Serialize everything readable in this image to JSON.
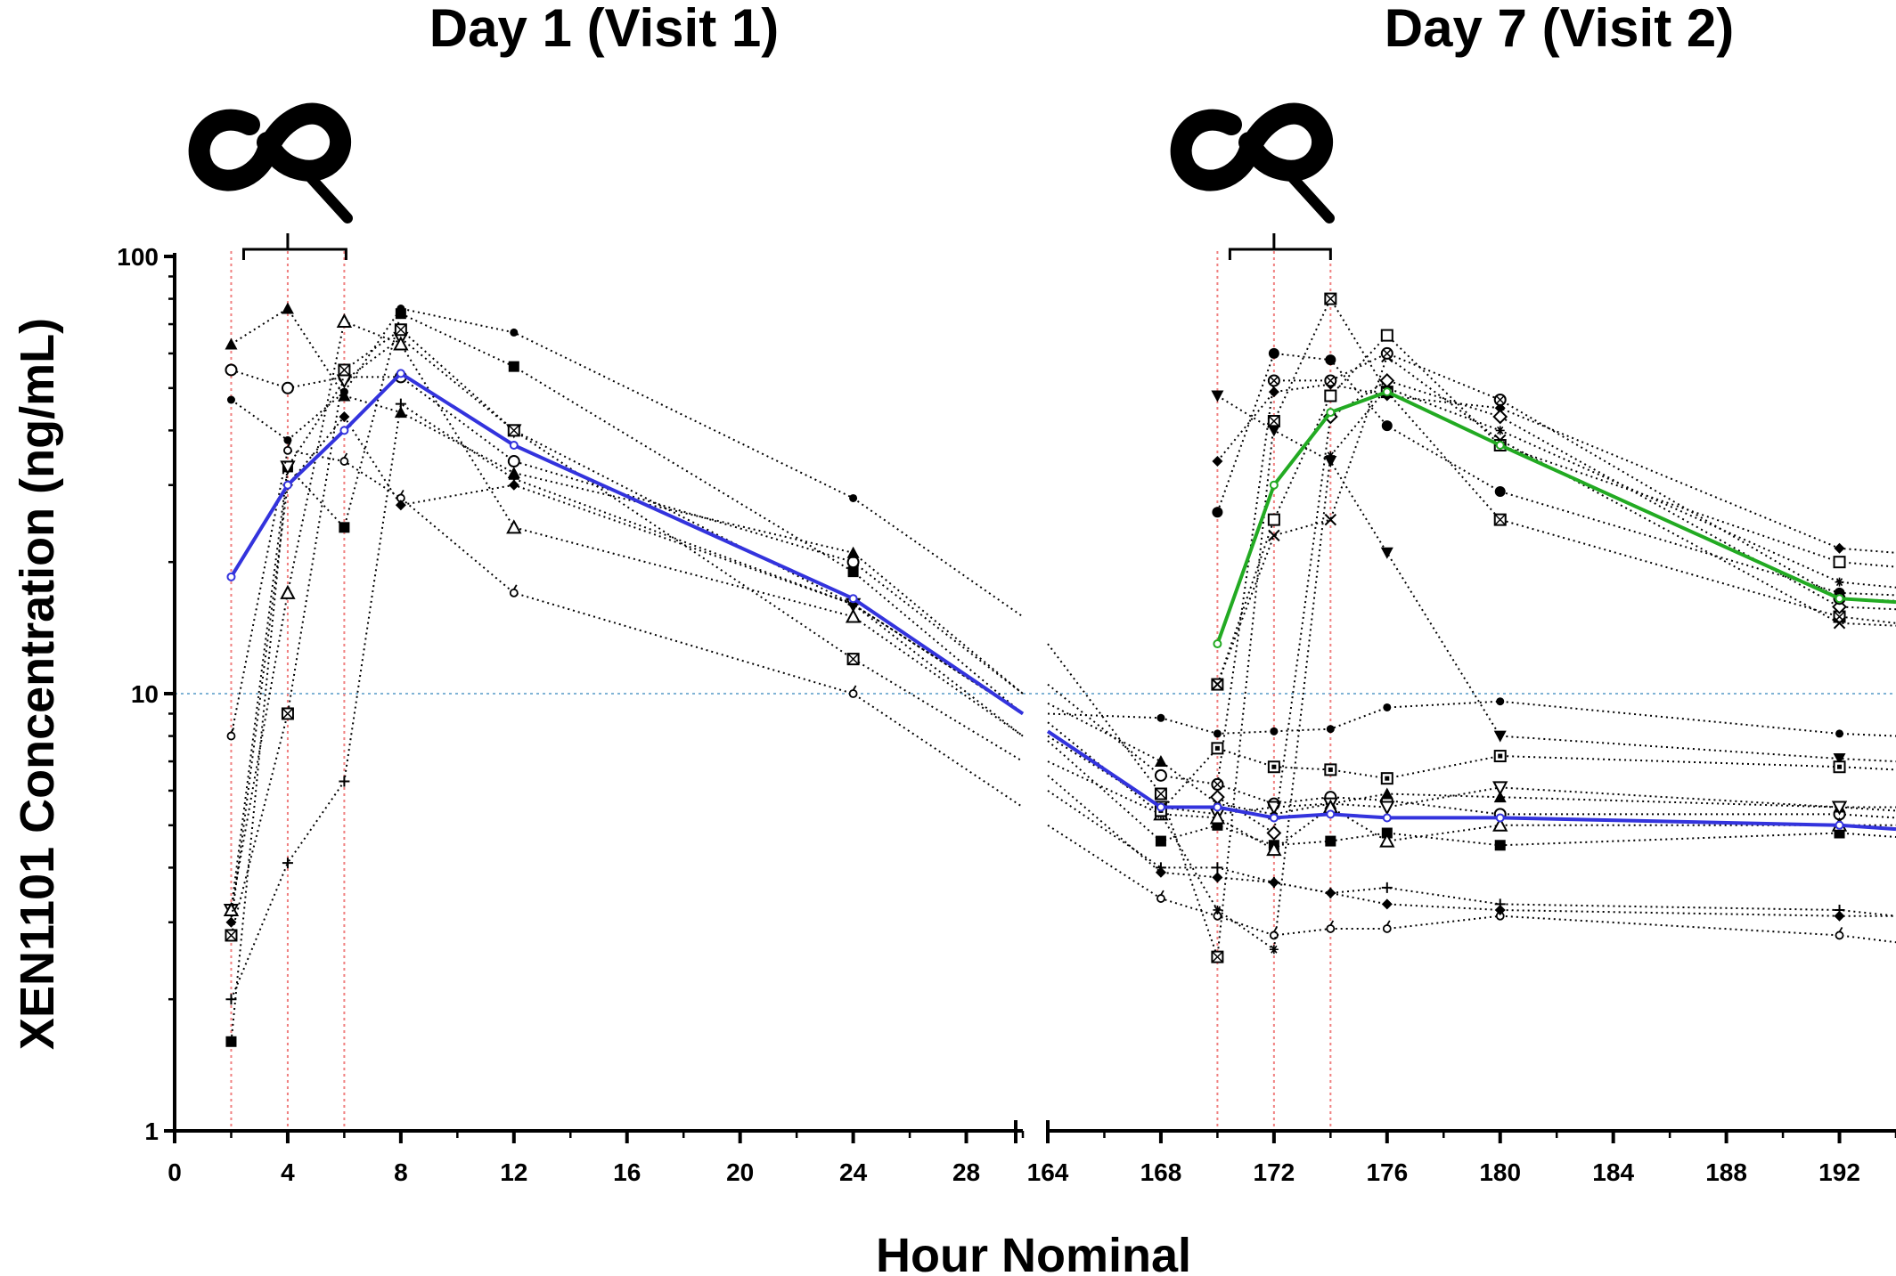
{
  "chart_data": {
    "type": "line",
    "yscale": "log",
    "ylim": [
      1,
      100
    ],
    "ylabel": "XEN1101 Concentration (ng/mL)",
    "xlabel": "Hour Nominal",
    "grid": false,
    "panels": [
      {
        "title": "Day 1 (Visit 1)",
        "xlim": [
          0,
          30
        ],
        "xticks": [
          "0",
          "4",
          "8",
          "12",
          "16",
          "20",
          "24",
          "28"
        ],
        "dose_times": [
          2,
          4,
          6
        ],
        "dosing_icon": "meal-icon"
      },
      {
        "title": "Day 7 (Visit 2)",
        "xlim": [
          164,
          194
        ],
        "xticks": [
          "164",
          "168",
          "172",
          "176",
          "180",
          "184",
          "188",
          "192"
        ],
        "dose_times": [
          170,
          172,
          174
        ],
        "dosing_icon": "meal-icon"
      }
    ],
    "yticks": [
      "1",
      "10",
      "100"
    ],
    "reference_line": {
      "y": 10,
      "color": "#7fb3d5"
    },
    "dose_line_color": "#f08080",
    "subject_color": "#000000",
    "mean_color_primary": "#3333dd",
    "mean_color_green": "#22aa22",
    "mean_series": [
      {
        "color": "#3333dd",
        "points": [
          [
            2,
            18.5
          ],
          [
            4,
            30
          ],
          [
            6,
            40
          ],
          [
            8,
            54
          ],
          [
            12,
            37
          ],
          [
            24,
            16.5
          ],
          [
            30,
            9
          ],
          [
            164,
            8.2
          ],
          [
            168,
            5.5
          ],
          [
            170,
            5.5
          ],
          [
            172,
            5.2
          ],
          [
            174,
            5.3
          ],
          [
            176,
            5.2
          ],
          [
            180,
            5.2
          ],
          [
            192,
            5.0
          ],
          [
            194,
            4.9
          ]
        ]
      },
      {
        "color": "#22aa22",
        "points": [
          [
            170,
            13
          ],
          [
            172,
            30
          ],
          [
            174,
            44
          ],
          [
            176,
            49
          ],
          [
            180,
            37
          ],
          [
            192,
            16.5
          ],
          [
            194,
            16.2
          ]
        ]
      }
    ],
    "subject_series": [
      {
        "marker": "square-filled",
        "points": [
          [
            2,
            1.6
          ],
          [
            4,
            33
          ],
          [
            6,
            24
          ],
          [
            8,
            74
          ],
          [
            12,
            56
          ],
          [
            24,
            19
          ],
          [
            30,
            9
          ],
          [
            164,
            7.8
          ],
          [
            168,
            4.6
          ],
          [
            170,
            5.0
          ],
          [
            172,
            4.5
          ],
          [
            174,
            4.6
          ],
          [
            176,
            4.8
          ],
          [
            180,
            4.5
          ],
          [
            192,
            4.8
          ],
          [
            194,
            4.7
          ]
        ]
      },
      {
        "marker": "circle-open",
        "points": [
          [
            2,
            55
          ],
          [
            4,
            50
          ],
          [
            6,
            53
          ],
          [
            8,
            53
          ],
          [
            12,
            34
          ],
          [
            24,
            20
          ],
          [
            30,
            10
          ],
          [
            164,
            10.5
          ],
          [
            168,
            6.5
          ],
          [
            170,
            6.2
          ],
          [
            172,
            5.6
          ],
          [
            174,
            5.8
          ],
          [
            176,
            5.7
          ],
          [
            180,
            5.3
          ],
          [
            192,
            5.3
          ],
          [
            194,
            5.2
          ]
        ]
      },
      {
        "marker": "triangle-filled",
        "points": [
          [
            2,
            63
          ],
          [
            4,
            76
          ],
          [
            6,
            48
          ],
          [
            8,
            44
          ],
          [
            12,
            32
          ],
          [
            24,
            21
          ],
          [
            30,
            10
          ],
          [
            164,
            9.5
          ],
          [
            168,
            7.0
          ],
          [
            170,
            5.6
          ],
          [
            172,
            5.3
          ],
          [
            174,
            5.6
          ],
          [
            176,
            5.9
          ],
          [
            180,
            5.8
          ],
          [
            192,
            5.5
          ],
          [
            194,
            5.4
          ]
        ]
      },
      {
        "marker": "circle-filled-small",
        "points": [
          [
            2,
            47
          ],
          [
            4,
            38
          ],
          [
            6,
            49
          ],
          [
            8,
            76
          ],
          [
            12,
            67
          ],
          [
            24,
            28
          ],
          [
            30,
            15
          ],
          [
            164,
            9
          ],
          [
            168,
            8.8
          ],
          [
            170,
            8.1
          ],
          [
            172,
            8.2
          ],
          [
            174,
            8.3
          ],
          [
            176,
            9.3
          ],
          [
            180,
            9.6
          ],
          [
            192,
            8.1
          ],
          [
            194,
            8.0
          ]
        ]
      },
      {
        "marker": "triangle-down-open",
        "points": [
          [
            2,
            3.2
          ],
          [
            4,
            33
          ],
          [
            6,
            52
          ],
          [
            8,
            65
          ],
          [
            12,
            40
          ],
          [
            24,
            16
          ],
          [
            30,
            9
          ],
          [
            164,
            8
          ],
          [
            168,
            5.5
          ],
          [
            170,
            5.3
          ],
          [
            172,
            5.5
          ],
          [
            174,
            5.6
          ],
          [
            176,
            5.5
          ],
          [
            180,
            6.1
          ],
          [
            192,
            5.5
          ],
          [
            194,
            5.5
          ]
        ]
      },
      {
        "marker": "square-x",
        "points": [
          [
            2,
            2.8
          ],
          [
            4,
            9
          ],
          [
            6,
            55
          ],
          [
            8,
            68
          ],
          [
            12,
            40
          ],
          [
            24,
            12
          ],
          [
            30,
            7
          ],
          [
            164,
            13
          ],
          [
            168,
            5.9
          ],
          [
            170,
            2.5
          ],
          [
            172,
            42
          ],
          [
            174,
            80
          ],
          [
            176,
            49
          ],
          [
            180,
            25
          ],
          [
            192,
            15
          ],
          [
            194,
            14.5
          ]
        ]
      },
      {
        "marker": "plus",
        "points": [
          [
            2,
            2.0
          ],
          [
            4,
            4.1
          ],
          [
            6,
            6.3
          ],
          [
            8,
            46
          ],
          [
            12,
            31
          ],
          [
            24,
            16
          ],
          [
            30,
            8
          ],
          [
            164,
            6
          ],
          [
            168,
            4.0
          ],
          [
            170,
            4.0
          ],
          [
            172,
            3.7
          ],
          [
            174,
            3.5
          ],
          [
            176,
            3.6
          ],
          [
            180,
            3.3
          ],
          [
            192,
            3.2
          ],
          [
            194,
            3.1
          ]
        ]
      },
      {
        "marker": "diamond-small-open",
        "points": [
          [
            2,
            8
          ],
          [
            4,
            36
          ],
          [
            6,
            34
          ],
          [
            8,
            28
          ],
          [
            12,
            17
          ],
          [
            24,
            10
          ],
          [
            30,
            5.5
          ],
          [
            164,
            5
          ],
          [
            168,
            3.4
          ],
          [
            170,
            3.1
          ],
          [
            172,
            2.8
          ],
          [
            174,
            2.9
          ],
          [
            176,
            2.9
          ],
          [
            180,
            3.1
          ],
          [
            192,
            2.8
          ],
          [
            194,
            2.7
          ]
        ]
      },
      {
        "marker": "triangle-open",
        "points": [
          [
            2,
            3.2
          ],
          [
            4,
            17
          ],
          [
            6,
            71
          ],
          [
            8,
            63
          ],
          [
            12,
            24
          ],
          [
            24,
            15
          ],
          [
            30,
            8
          ],
          [
            164,
            7
          ],
          [
            168,
            5.3
          ],
          [
            170,
            5.2
          ],
          [
            172,
            4.4
          ],
          [
            174,
            5.5
          ],
          [
            176,
            4.6
          ],
          [
            180,
            5.0
          ],
          [
            192,
            5.0
          ],
          [
            194,
            5.0
          ]
        ]
      },
      {
        "marker": "diamond-filled",
        "points": [
          [
            2,
            3.0
          ],
          [
            4,
            30
          ],
          [
            6,
            43
          ],
          [
            8,
            27
          ],
          [
            12,
            30
          ],
          [
            24,
            16
          ],
          [
            30,
            9
          ],
          [
            164,
            6.5
          ],
          [
            168,
            3.9
          ],
          [
            170,
            3.8
          ],
          [
            172,
            3.7
          ],
          [
            174,
            3.5
          ],
          [
            176,
            3.3
          ],
          [
            180,
            3.2
          ],
          [
            192,
            3.1
          ],
          [
            194,
            3.1
          ]
        ]
      },
      {
        "marker": "star",
        "points": [
          [
            164,
            8.6
          ],
          [
            168,
            5.3
          ],
          [
            170,
            3.2
          ],
          [
            172,
            2.6
          ],
          [
            174,
            35
          ],
          [
            176,
            50
          ],
          [
            180,
            40
          ],
          [
            192,
            18
          ],
          [
            194,
            17.5
          ]
        ]
      },
      {
        "marker": "diamond-filled",
        "points": [
          [
            170,
            34
          ],
          [
            172,
            49
          ],
          [
            174,
            51
          ],
          [
            176,
            48
          ],
          [
            180,
            45
          ],
          [
            192,
            21.5
          ],
          [
            194,
            21
          ]
        ]
      },
      {
        "marker": "circle-filled",
        "points": [
          [
            170,
            26
          ],
          [
            172,
            60
          ],
          [
            174,
            58
          ],
          [
            176,
            41
          ],
          [
            180,
            29
          ],
          [
            192,
            17
          ],
          [
            194,
            16.8
          ]
        ]
      },
      {
        "marker": "square-open",
        "points": [
          [
            170,
            10.5
          ],
          [
            172,
            25
          ],
          [
            174,
            48
          ],
          [
            176,
            66
          ],
          [
            180,
            37
          ],
          [
            192,
            20
          ],
          [
            194,
            19.5
          ]
        ]
      },
      {
        "marker": "triangle-down-filled",
        "points": [
          [
            170,
            48
          ],
          [
            172,
            40
          ],
          [
            174,
            34
          ],
          [
            176,
            21
          ],
          [
            180,
            8
          ],
          [
            192,
            7.1
          ],
          [
            194,
            7.0
          ]
        ]
      },
      {
        "marker": "x",
        "points": [
          [
            170,
            10.5
          ],
          [
            172,
            23
          ],
          [
            174,
            25
          ],
          [
            176,
            59
          ],
          [
            180,
            38
          ],
          [
            192,
            14.5
          ],
          [
            194,
            14.3
          ]
        ]
      },
      {
        "marker": "diamond-open",
        "points": [
          [
            170,
            5.8
          ],
          [
            172,
            4.8
          ],
          [
            174,
            43
          ],
          [
            176,
            52
          ],
          [
            180,
            43
          ],
          [
            192,
            15.8
          ],
          [
            194,
            15.6
          ]
        ]
      },
      {
        "marker": "circle-x",
        "points": [
          [
            170,
            6.2
          ],
          [
            172,
            52
          ],
          [
            174,
            52
          ],
          [
            176,
            60
          ],
          [
            180,
            47
          ],
          [
            192,
            16.5
          ],
          [
            194,
            16.3
          ]
        ]
      },
      {
        "marker": "square-dot",
        "points": [
          [
            168,
            5.4
          ],
          [
            170,
            7.5
          ],
          [
            172,
            6.8
          ],
          [
            174,
            6.7
          ],
          [
            176,
            6.4
          ],
          [
            180,
            7.2
          ],
          [
            192,
            6.8
          ],
          [
            194,
            6.7
          ]
        ]
      }
    ]
  }
}
